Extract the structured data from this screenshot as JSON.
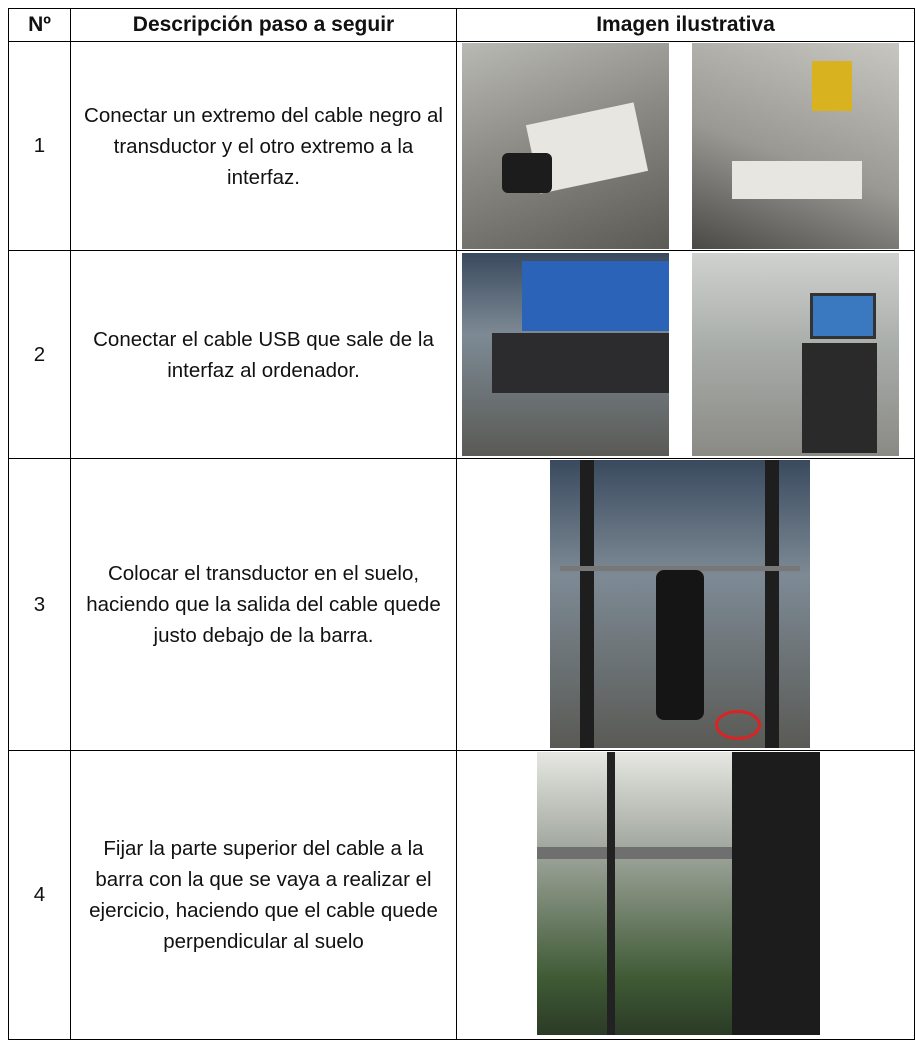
{
  "table": {
    "header": [
      "Nº",
      "Descripción paso a seguir",
      "Imagen ilustrativa"
    ],
    "rows": [
      {
        "number": "1",
        "text": "Conectar un extremo del cable negro al transductor y el otro extremo a la interfaz."
      },
      {
        "number": "2",
        "text": "Conectar el cable USB que sale de la interfaz al ordenador."
      },
      {
        "number": "3",
        "text": "Colocar el transductor en el suelo, haciendo que la salida del cable quede justo debajo de la barra."
      },
      {
        "number": "4",
        "text": "Fijar la parte superior del cable a la barra con la que se vaya a realizar el ejercicio, haciendo que el cable quede perpendicular al suelo"
      }
    ]
  }
}
